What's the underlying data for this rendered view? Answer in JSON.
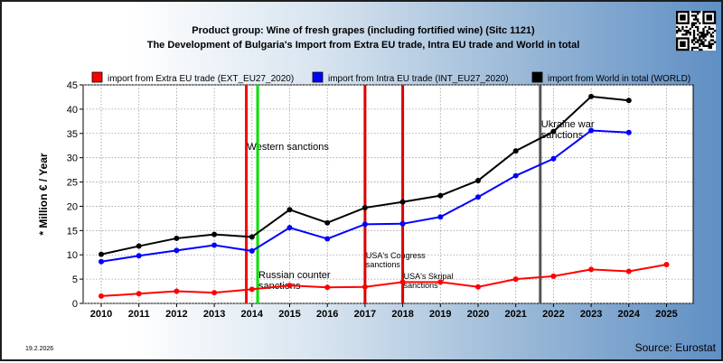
{
  "chart_data": {
    "type": "line",
    "title": "Product group: Wine of fresh grapes (including fortified wine) (Sitc 1121)",
    "subtitle": "The Development of Bulgaria's Import from Extra EU trade, Intra EU trade and World in total",
    "ylabel": "* Million € / Year",
    "ylim": [
      0,
      45
    ],
    "yticks": [
      0,
      5,
      10,
      15,
      20,
      25,
      30,
      35,
      40,
      45
    ],
    "x": [
      "2010",
      "2011",
      "2012",
      "2013",
      "2014",
      "2015",
      "2016",
      "2017",
      "2018",
      "2019",
      "2020",
      "2021",
      "2022",
      "2023",
      "2024",
      "2025"
    ],
    "grid": true,
    "legend_position": "top",
    "series": [
      {
        "name": "import from Extra EU trade (EXT_EU27_2020)",
        "color": "#ff0000",
        "values": [
          1.5,
          2.0,
          2.5,
          2.2,
          2.9,
          3.7,
          3.3,
          3.4,
          4.4,
          4.4,
          3.4,
          5.0,
          5.6,
          7.0,
          6.6,
          8.0
        ]
      },
      {
        "name": "import from Intra EU trade (INT_EU27_2020)",
        "color": "#0000ff",
        "values": [
          8.6,
          9.8,
          10.9,
          12.0,
          10.8,
          15.6,
          13.3,
          16.3,
          16.4,
          17.8,
          21.9,
          26.3,
          29.8,
          35.6,
          35.2,
          null
        ]
      },
      {
        "name": "import from World in total (WORLD)",
        "color": "#000000",
        "values": [
          10.1,
          11.8,
          13.4,
          14.2,
          13.7,
          19.3,
          16.6,
          19.7,
          20.9,
          22.2,
          25.3,
          31.4,
          35.4,
          42.6,
          41.8,
          null
        ]
      }
    ],
    "events": [
      {
        "x": 2013.85,
        "color": "#ff0000",
        "label": "Western sanctions"
      },
      {
        "x": 2014.15,
        "color": "#00dd00",
        "label": "Russian counter sanctions"
      },
      {
        "x": 2017.0,
        "color": "#dd0000",
        "label": "USA's Congress sanctions"
      },
      {
        "x": 2018.0,
        "color": "#dd0000",
        "label": "USA's Skripal sanctions"
      },
      {
        "x": 2021.65,
        "color": "#555555",
        "label": "Ukraine war sanctions"
      }
    ]
  },
  "footer": {
    "date": "19.2.2026",
    "source": "Source: Eurostat"
  },
  "icons": {
    "qr": "qr-code-icon"
  }
}
